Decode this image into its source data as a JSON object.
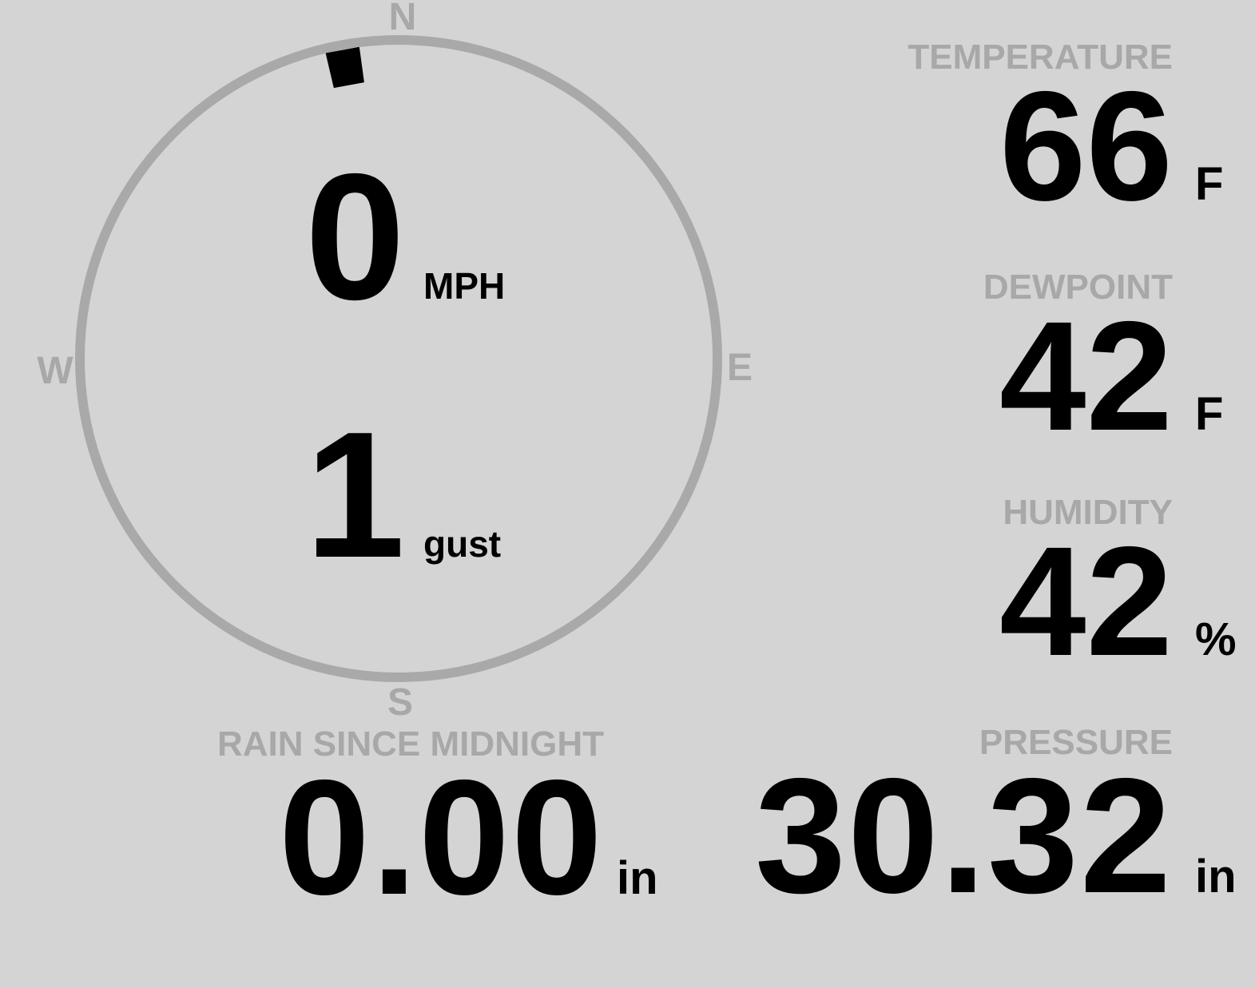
{
  "colors": {
    "background": "#d4d4d4",
    "muted": "#a8a8a8",
    "ring": "#a9a9a9",
    "value": "#000000"
  },
  "compass": {
    "north": "N",
    "east": "E",
    "south": "S",
    "west": "W",
    "wind_direction_deg": 349.5,
    "speed_value": "0",
    "speed_unit": "MPH",
    "gust_value": "1",
    "gust_unit": "gust"
  },
  "temperature": {
    "label": "TEMPERATURE",
    "value": "66",
    "unit": "F"
  },
  "dewpoint": {
    "label": "DEWPOINT",
    "value": "42",
    "unit": "F"
  },
  "humidity": {
    "label": "HUMIDITY",
    "value": "42",
    "unit": "%"
  },
  "rain": {
    "label": "RAIN SINCE MIDNIGHT",
    "value": "0.00",
    "unit": "in"
  },
  "pressure": {
    "label": "PRESSURE",
    "value": "30.32",
    "unit": "in"
  }
}
